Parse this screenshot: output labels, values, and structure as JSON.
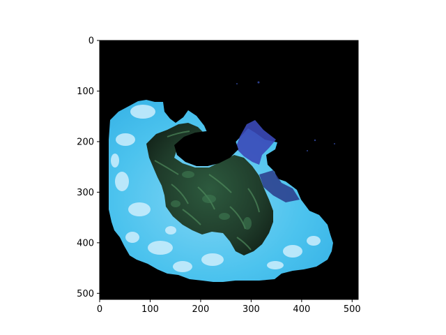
{
  "chart_data": {
    "type": "image",
    "title": "",
    "xlabel": "",
    "ylabel": "",
    "xlim": [
      0,
      512
    ],
    "ylim": [
      512,
      0
    ],
    "x_ticks": [
      0,
      100,
      200,
      300,
      400,
      500
    ],
    "y_ticks": [
      0,
      100,
      200,
      300,
      400,
      500
    ],
    "x_tick_labels": [
      "0",
      "100",
      "200",
      "300",
      "400",
      "500"
    ],
    "y_tick_labels": [
      "0",
      "100",
      "200",
      "300",
      "400",
      "500"
    ],
    "grid": false,
    "background_color": "#000000",
    "colors": {
      "cyan_region": "#4cc3ee",
      "cyan_highlight": "#cdeefd",
      "dark_green_region": "#1f3b2a",
      "blue_region": "#3b49b8"
    }
  }
}
